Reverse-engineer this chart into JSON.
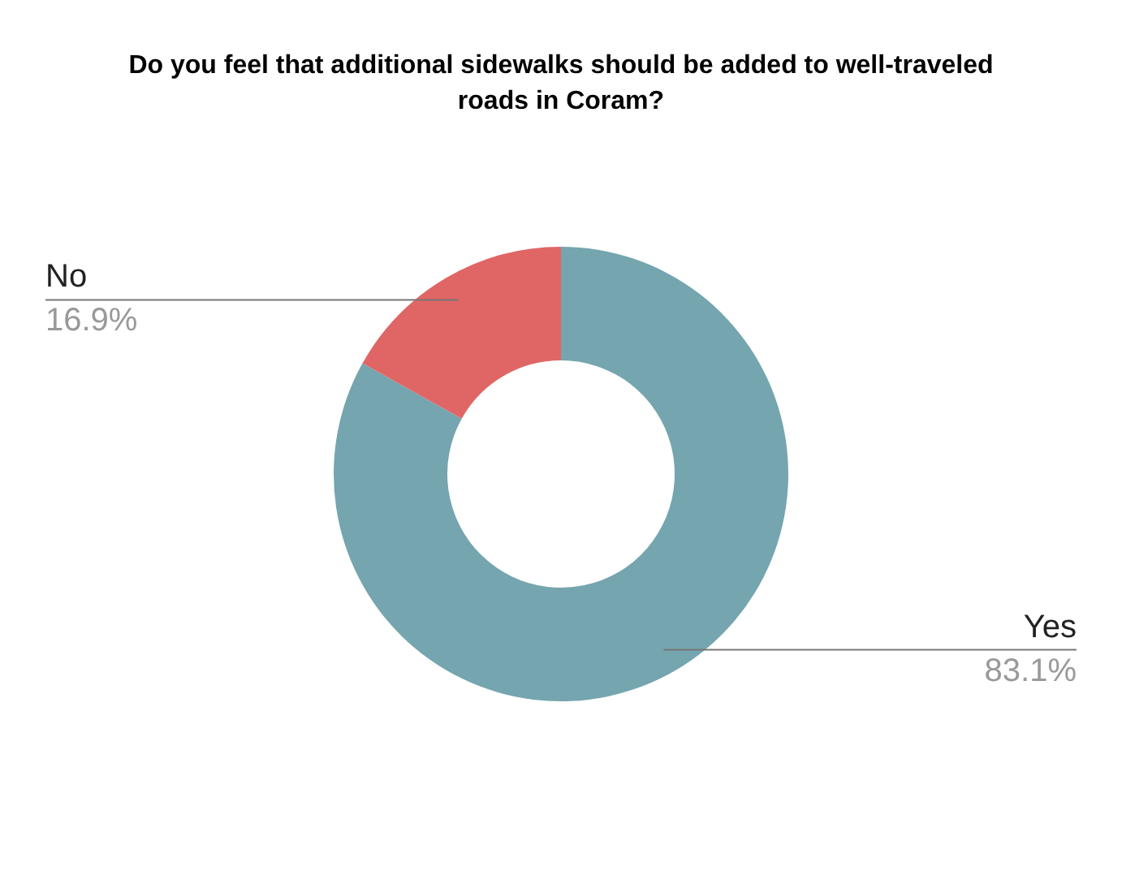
{
  "chart_data": {
    "type": "donut",
    "title": "Do you feel that additional sidewalks should be added to well-traveled roads in Coram?",
    "categories": [
      "Yes",
      "No"
    ],
    "values": [
      83.1,
      16.9
    ],
    "colors": [
      "#75a5af",
      "#e06666"
    ],
    "value_labels": [
      "83.1%",
      "16.9%"
    ],
    "legend": false
  }
}
